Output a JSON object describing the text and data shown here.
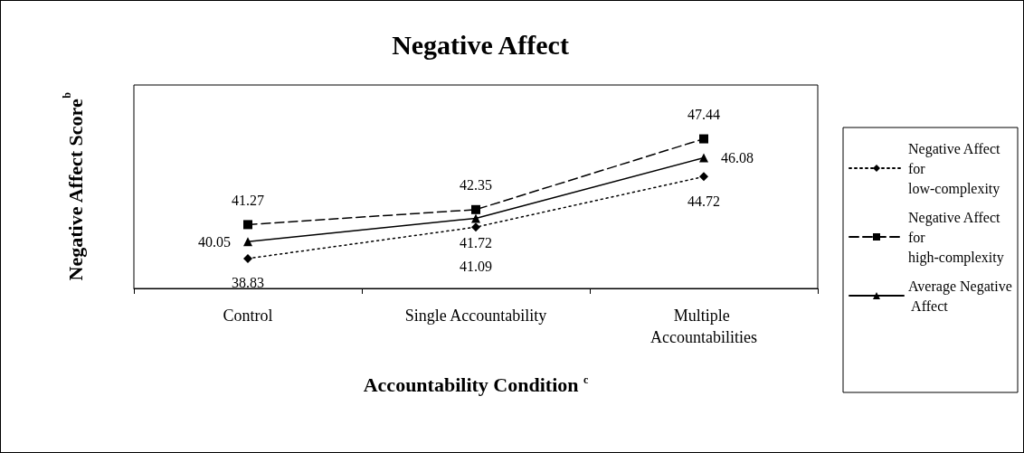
{
  "chart_data": {
    "type": "line",
    "title": "Negative Affect",
    "xlabel": "Accountability Condition $^{c}$",
    "ylabel": "Negative Affect Score$^{b}$",
    "categories": [
      "Control",
      "Single Accountability",
      "Multiple Accountabilities"
    ],
    "series": [
      {
        "name": "Negative Affect for low-complexity",
        "color": "#000000",
        "marker": "diamond",
        "line_style": "dotted",
        "values": [
          38.83,
          41.09,
          44.72
        ]
      },
      {
        "name": "Negative Affect for high-complexity",
        "color": "#000000",
        "marker": "square",
        "line_style": "dashed",
        "values": [
          41.27,
          42.35,
          47.44
        ]
      },
      {
        "name": "Average Negative Affect",
        "color": "#000000",
        "marker": "triangle",
        "line_style": "solid",
        "values": [
          40.05,
          41.72,
          46.08
        ]
      }
    ],
    "data_labels": true,
    "legend": "right",
    "grid": false
  }
}
